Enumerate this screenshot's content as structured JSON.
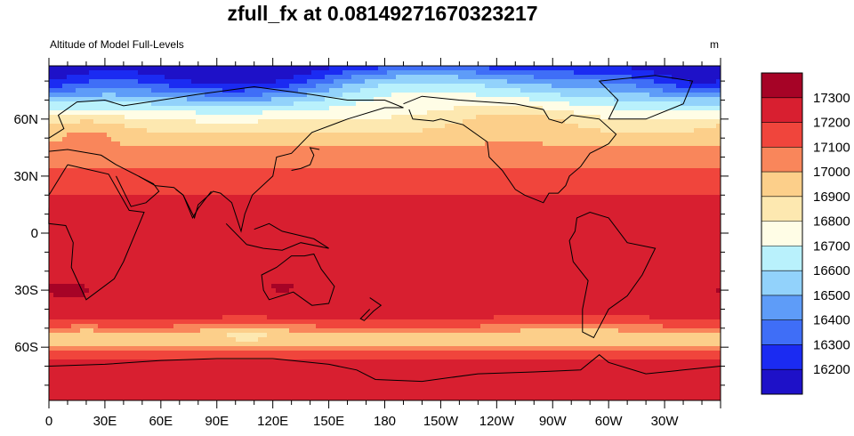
{
  "chart_data": {
    "type": "heatmap",
    "title": "zfull_fx at 0.08149271670323217",
    "subtitle_left": "Altitude of Model Full-Levels",
    "subtitle_right": "m",
    "projection": "cylindrical equidistant, centered on 180",
    "x_ticks": [
      "0",
      "30E",
      "60E",
      "90E",
      "120E",
      "150E",
      "180",
      "150W",
      "120W",
      "90W",
      "60W",
      "30W"
    ],
    "y_ticks": [
      "60N",
      "30N",
      "0",
      "30S",
      "60S"
    ],
    "colorbar": {
      "labels": [
        16200,
        16300,
        16400,
        16500,
        16600,
        16700,
        16800,
        16900,
        17000,
        17100,
        17200,
        17300
      ],
      "colors": [
        "#1e11c8",
        "#1b2bf2",
        "#3f6ef7",
        "#5e9cf8",
        "#92d2fb",
        "#b9f1fc",
        "#fffde6",
        "#fde8b0",
        "#fccf8a",
        "#f9865b",
        "#f0453c",
        "#d81f30",
        "#a60326"
      ]
    },
    "field_summary": {
      "min": 16150,
      "max": 17350,
      "units": "m",
      "pattern": "highest in the tropics and southern midlatitudes (~17200-17300 m); lowest over the Arctic, especially northern Eurasia and Greenland (~16200-16400 m); local minima (~16900-17000 m) over the Southern Ocean near 55S"
    }
  }
}
